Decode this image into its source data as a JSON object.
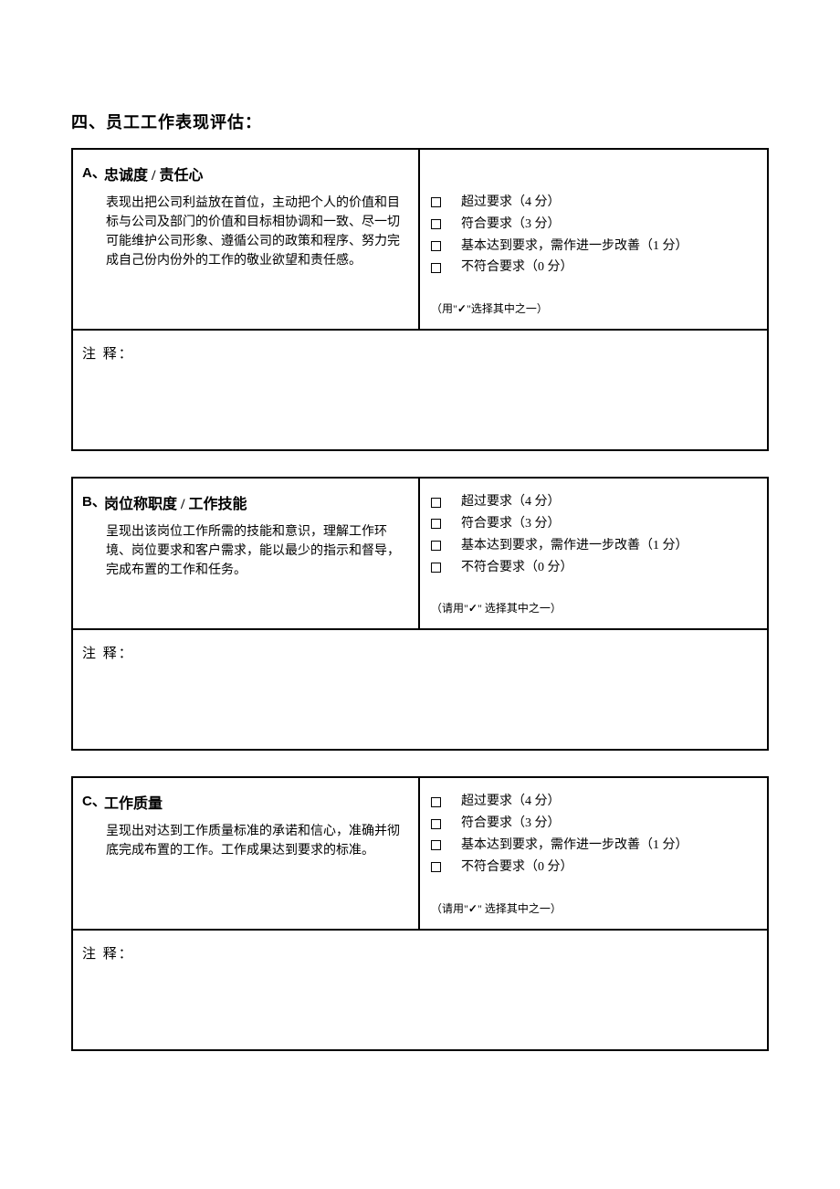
{
  "section_title": "四、员工工作表现评估：",
  "comment_label": "注 释：",
  "options": [
    "超过要求（4 分）",
    "符合要求（3 分）",
    "基本达到要求，需作进一步改善（1 分）",
    "不符合要求（0 分）"
  ],
  "hint_a": "（用\"✓\"选择其中之一）",
  "hint_b": "（请用\"✓\" 选择其中之一）",
  "criteria": [
    {
      "letter": "A、",
      "title": "忠诚度 / 责任心",
      "desc": "表现出把公司利益放在首位，主动把个人的价值和目标与公司及部门的价值和目标相协调和一致、尽一切可能维护公司形象、遵循公司的政策和程序、努力完成自己份内份外的工作的敬业欲望和责任感。",
      "hint_key": "hint_a",
      "options_top_pad": "32px"
    },
    {
      "letter": "B、",
      "title": "岗位称职度 / 工作技能",
      "desc": "呈现出该岗位工作所需的技能和意识，理解工作环境、岗位要求和客户需求，能以最少的指示和督导，完成布置的工作和任务。",
      "hint_key": "hint_b",
      "options_top_pad": "0px"
    },
    {
      "letter": "C、",
      "title": "工作质量",
      "desc": "呈现出对达到工作质量标准的承诺和信心，准确并彻底完成布置的工作。工作成果达到要求的标准。",
      "hint_key": "hint_b",
      "options_top_pad": "0px"
    }
  ],
  "watermark_text": "",
  "colors": {
    "text": "#000000",
    "border": "#000000",
    "background": "#ffffff",
    "watermark": "#e8e8e8"
  }
}
